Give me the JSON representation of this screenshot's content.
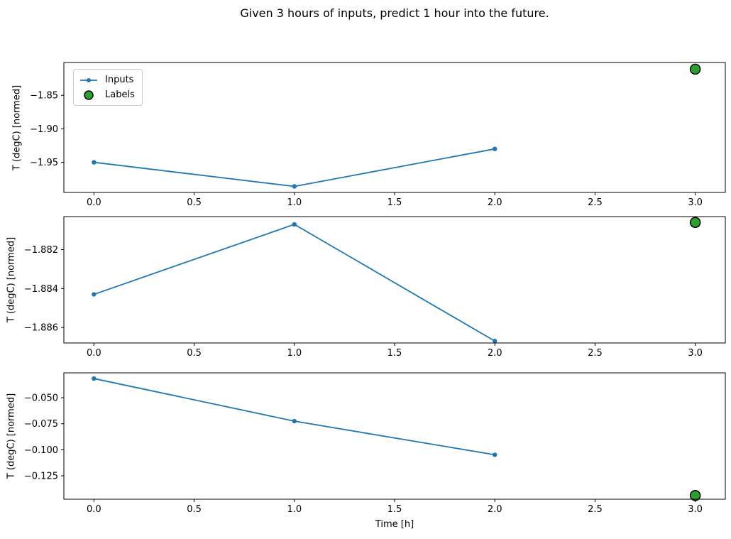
{
  "title": "Given 3 hours of inputs, predict 1 hour into the future.",
  "xlabel": "Time [h]",
  "legend": {
    "position": "upper-left",
    "items": [
      {
        "label": "Inputs",
        "marker": "line-with-dot"
      },
      {
        "label": "Labels",
        "marker": "filled-circle"
      }
    ]
  },
  "colors": {
    "inputs_line": "#1f77b4",
    "labels_fill": "#2ca02c",
    "labels_edge": "#000000",
    "axis": "#000000",
    "background": "#ffffff"
  },
  "chart_data": [
    {
      "type": "line",
      "ylabel": "T (degC) [normed]",
      "x": [
        0.0,
        1.0,
        2.0
      ],
      "series": [
        {
          "name": "Inputs",
          "values": [
            -1.95,
            -1.986,
            -1.93
          ]
        }
      ],
      "labels_point": {
        "name": "Labels",
        "x": 3.0,
        "y": -1.811
      },
      "xlim": [
        -0.15,
        3.15
      ],
      "ylim": [
        -1.995,
        -1.801
      ],
      "xticks": [
        0.0,
        0.5,
        1.0,
        1.5,
        2.0,
        2.5,
        3.0
      ],
      "xticklabels": [
        "0.0",
        "0.5",
        "1.0",
        "1.5",
        "2.0",
        "2.5",
        "3.0"
      ],
      "yticks": [
        -1.85,
        -1.9,
        -1.95
      ],
      "yticklabels": [
        "−1.85",
        "−1.90",
        "−1.95"
      ],
      "grid": false
    },
    {
      "type": "line",
      "ylabel": "T (degC) [normed]",
      "x": [
        0.0,
        1.0,
        2.0
      ],
      "series": [
        {
          "name": "Inputs",
          "values": [
            -1.8843,
            -1.8807,
            -1.8867
          ]
        }
      ],
      "labels_point": {
        "name": "Labels",
        "x": 3.0,
        "y": -1.8806
      },
      "xlim": [
        -0.15,
        3.15
      ],
      "ylim": [
        -1.8868,
        -1.8803
      ],
      "xticks": [
        0.0,
        0.5,
        1.0,
        1.5,
        2.0,
        2.5,
        3.0
      ],
      "xticklabels": [
        "0.0",
        "0.5",
        "1.0",
        "1.5",
        "2.0",
        "2.5",
        "3.0"
      ],
      "yticks": [
        -1.882,
        -1.884,
        -1.886
      ],
      "yticklabels": [
        "−1.882",
        "−1.884",
        "−1.886"
      ],
      "grid": false
    },
    {
      "type": "line",
      "ylabel": "T (degC) [normed]",
      "x": [
        0.0,
        1.0,
        2.0
      ],
      "series": [
        {
          "name": "Inputs",
          "values": [
            -0.0316,
            -0.0725,
            -0.1048
          ]
        }
      ],
      "labels_point": {
        "name": "Labels",
        "x": 3.0,
        "y": -0.1439
      },
      "xlim": [
        -0.15,
        3.15
      ],
      "ylim": [
        -0.1475,
        -0.0261
      ],
      "xticks": [
        0.0,
        0.5,
        1.0,
        1.5,
        2.0,
        2.5,
        3.0
      ],
      "xticklabels": [
        "0.0",
        "0.5",
        "1.0",
        "1.5",
        "2.0",
        "2.5",
        "3.0"
      ],
      "yticks": [
        -0.05,
        -0.075,
        -0.1,
        -0.125
      ],
      "yticklabels": [
        "−0.050",
        "−0.075",
        "−0.100",
        "−0.125"
      ],
      "grid": false
    }
  ]
}
